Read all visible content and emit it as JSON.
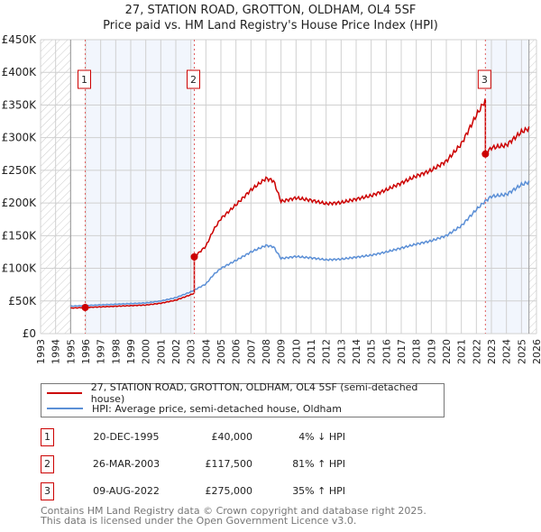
{
  "chart_data": {
    "type": "line",
    "title": "27, STATION ROAD, GROTTON, OLDHAM, OL4 5SF",
    "subtitle": "Price paid vs. HM Land Registry's House Price Index (HPI)",
    "xlim": [
      1993,
      2026
    ],
    "ylim": [
      0,
      450000
    ],
    "y_ticks": [
      {
        "v": 0,
        "label": "£0"
      },
      {
        "v": 50000,
        "label": "£50K"
      },
      {
        "v": 100000,
        "label": "£100K"
      },
      {
        "v": 150000,
        "label": "£150K"
      },
      {
        "v": 200000,
        "label": "£200K"
      },
      {
        "v": 250000,
        "label": "£250K"
      },
      {
        "v": 300000,
        "label": "£300K"
      },
      {
        "v": 350000,
        "label": "£350K"
      },
      {
        "v": 400000,
        "label": "£400K"
      },
      {
        "v": 450000,
        "label": "£450K"
      }
    ],
    "x_ticks": [
      "1993",
      "1994",
      "1995",
      "1996",
      "1997",
      "1998",
      "1999",
      "2000",
      "2001",
      "2002",
      "2003",
      "2004",
      "2005",
      "2006",
      "2007",
      "2008",
      "2009",
      "2010",
      "2011",
      "2012",
      "2013",
      "2014",
      "2015",
      "2016",
      "2017",
      "2018",
      "2019",
      "2020",
      "2021",
      "2022",
      "2023",
      "2024",
      "2025",
      "2026"
    ],
    "data_range": [
      1995,
      2025.5
    ],
    "hpi_series": {
      "name": "HPI: Average price, semi-detached house, Oldham",
      "color": "#5b8fd6",
      "x": [
        1995,
        1996,
        1997,
        1998,
        1999,
        2000,
        2001,
        2002,
        2003,
        2003.5,
        2004,
        2004.5,
        2005,
        2006,
        2007,
        2008,
        2008.5,
        2009,
        2010,
        2011,
        2012,
        2013,
        2014,
        2015,
        2016,
        2017,
        2018,
        2019,
        2020,
        2021,
        2022,
        2022.6,
        2023,
        2024,
        2025,
        2025.5
      ],
      "y": [
        42000,
        43000,
        44000,
        45000,
        46000,
        47000,
        50000,
        55000,
        64000,
        70000,
        76000,
        90000,
        100000,
        112000,
        125000,
        135000,
        133000,
        115000,
        118000,
        116000,
        113000,
        114000,
        117000,
        120000,
        125000,
        131000,
        137000,
        142000,
        150000,
        165000,
        190000,
        203000,
        210000,
        213000,
        228000,
        232000
      ]
    },
    "price_series": {
      "name": "27, STATION ROAD, GROTTON, OLDHAM, OL4 5SF (semi-detached house)",
      "color": "#cc0000"
    },
    "sales": [
      {
        "n": "1",
        "x": 1995.97,
        "date": "20-DEC-1995",
        "price": 40000,
        "price_label": "£40,000",
        "hpi_label": "4% ↓ HPI"
      },
      {
        "n": "2",
        "x": 2003.23,
        "date": "26-MAR-2003",
        "price": 117500,
        "price_label": "£117,500",
        "hpi_label": "81% ↑ HPI"
      },
      {
        "n": "3",
        "x": 2022.6,
        "date": "09-AUG-2022",
        "price": 275000,
        "price_label": "£275,000",
        "hpi_label": "35% ↑ HPI"
      }
    ]
  },
  "footer": {
    "line1": "Contains HM Land Registry data © Crown copyright and database right 2025.",
    "line2": "This data is licensed under the Open Government Licence v3.0."
  }
}
